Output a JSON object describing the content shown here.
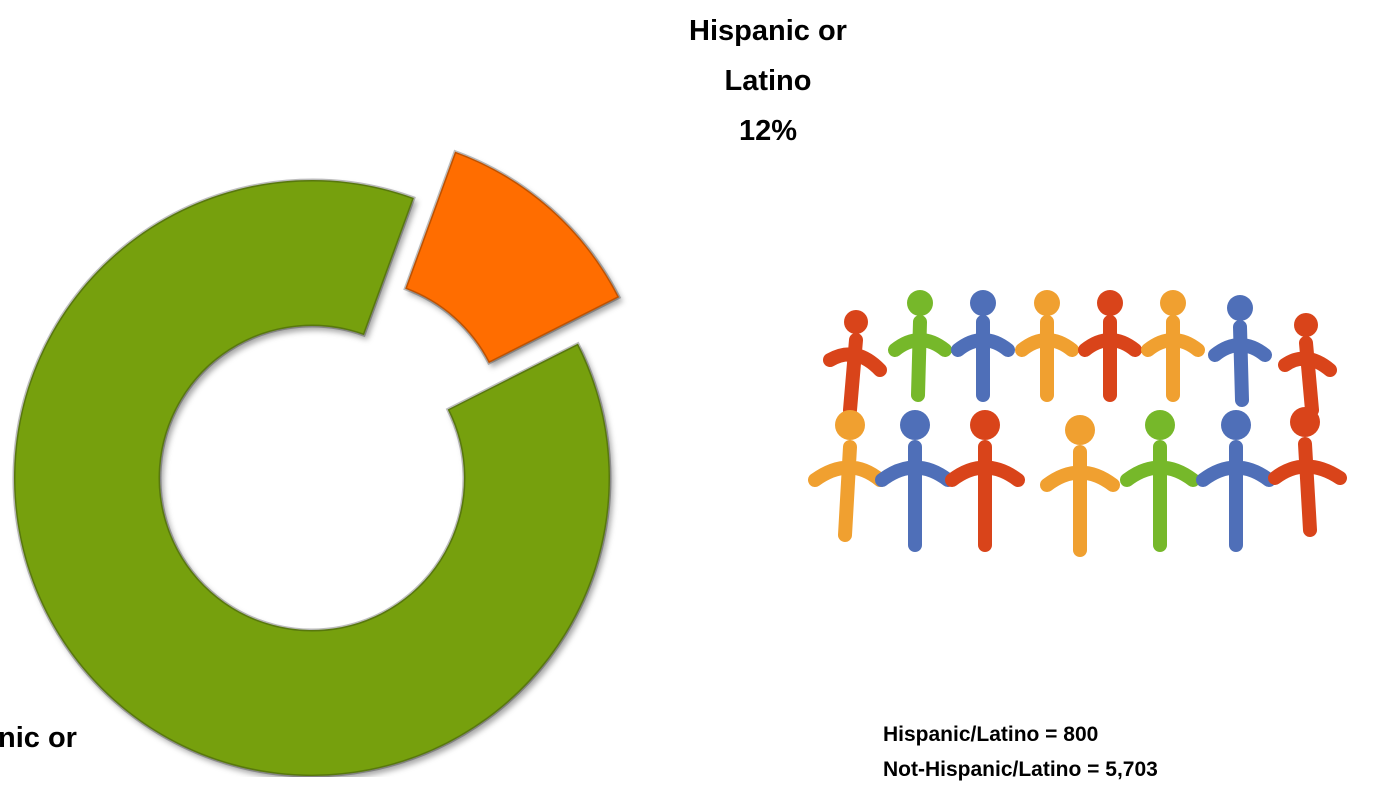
{
  "chart_data": {
    "type": "donut",
    "categories": [
      "Hispanic or Latino",
      "nic or"
    ],
    "values": [
      12,
      88
    ],
    "value_labels": [
      "12%",
      null
    ],
    "colors": [
      "#ff6d00",
      "#76a010"
    ],
    "notes": [
      "Hispanic/Latino = 800",
      "Not-Hispanic/Latino = 5,703"
    ]
  }
}
